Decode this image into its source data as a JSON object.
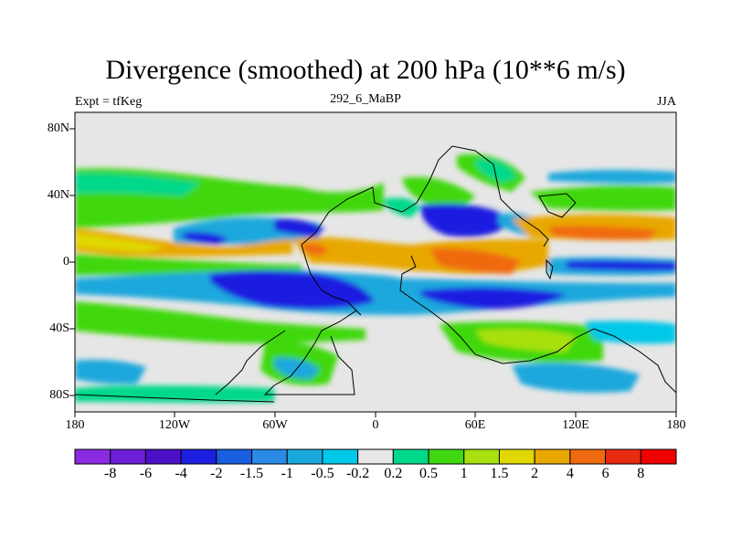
{
  "title": "Divergence (smoothed) at 200 hPa (10**6 m/s)",
  "experiment": "Expt = tfKeg",
  "subtitle": "292_6_MaBP",
  "season": "JJA",
  "map": {
    "y_ticks": [
      "80N",
      "40N",
      "0",
      "40S",
      "80S"
    ],
    "x_ticks": [
      "180",
      "120W",
      "60W",
      "0",
      "60E",
      "120E",
      "180"
    ]
  },
  "colorbar": {
    "labels": [
      "-8",
      "-6",
      "-4",
      "-2",
      "-1.5",
      "-1",
      "-0.5",
      "-0.2",
      "0.2",
      "0.5",
      "1",
      "1.5",
      "2",
      "4",
      "6",
      "8"
    ],
    "colors": [
      "#8a2be2",
      "#6b1fd6",
      "#4b0fc8",
      "#1e1ee0",
      "#1a5fe0",
      "#2a8ae6",
      "#1aa8dc",
      "#00c8e8",
      "#e6e6e6",
      "#00d88a",
      "#40d810",
      "#a8e010",
      "#e0d800",
      "#e8a800",
      "#f06a10",
      "#e82a10",
      "#f00000"
    ]
  },
  "colors": {
    "background_field": "#e6e6e6",
    "coastline": "#000000"
  }
}
